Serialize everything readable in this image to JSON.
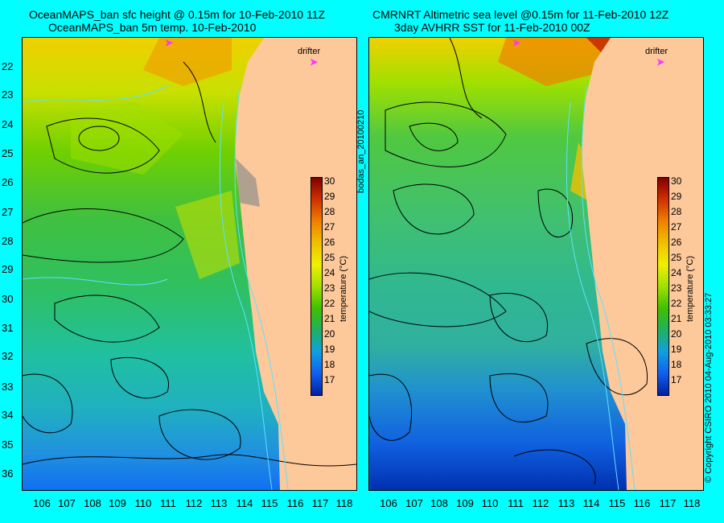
{
  "left_panel": {
    "title_line1": "OceanMAPS_ban sfc height @ 0.15m for 10-Feb-2010 11Z",
    "title_line2": "OceanMAPS_ban 5m temp. 10-Feb-2010",
    "drifter_label": "drifter",
    "colorbar_label": "temperature (°C)"
  },
  "right_panel": {
    "title_line1": "CMRNRT Altimetric sea level  @0.15m  for 11-Feb-2010 12Z",
    "title_line2": "3day AVHRR SST for 11-Feb-2010 00Z",
    "drifter_label": "drifter",
    "colorbar_label": "temperature (°C)"
  },
  "center_vertical_label": "bodas_an_20100210",
  "right_vertical_label": "© Copyright CSIRO 2010    04-Aug-2010 03:33:27",
  "latitudes": [
    "22",
    "23",
    "24",
    "25",
    "26",
    "27",
    "28",
    "29",
    "30",
    "31",
    "32",
    "33",
    "34",
    "35",
    "36"
  ],
  "longitudes": [
    "106",
    "107",
    "108",
    "109",
    "110",
    "111",
    "112",
    "113",
    "114",
    "115",
    "116",
    "117",
    "118"
  ],
  "colorbar_ticks": [
    "30",
    "29",
    "28",
    "27",
    "26",
    "25",
    "24",
    "23",
    "22",
    "21",
    "20",
    "19",
    "18",
    "17"
  ],
  "colors": {
    "land": "#fdc89a",
    "background": "#00ffff"
  }
}
